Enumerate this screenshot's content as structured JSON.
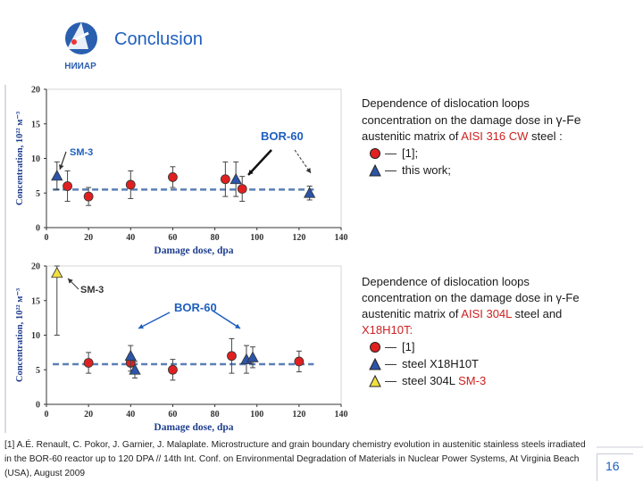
{
  "header": {
    "title": "Conclusion",
    "logo_text": "НИИАР"
  },
  "charts": {
    "chart_data": [
      {
        "type": "scatter",
        "xlabel": "Damage dose, dpa",
        "ylabel": "Concentration, 10²² м⁻³",
        "xlim": [
          0,
          140
        ],
        "ylim": [
          0,
          20
        ],
        "xticks": [
          "0",
          "20",
          "40",
          "60",
          "80",
          "100",
          "120",
          "140"
        ],
        "yticks": [
          "0",
          "5",
          "10",
          "15",
          "20"
        ],
        "annotations": [
          "SM-3",
          "BOR-60"
        ],
        "mean_line": 5.5,
        "series": [
          {
            "name": "[1]",
            "marker": "circle",
            "x": [
              10,
              20,
              40,
              60,
              85,
              93
            ],
            "y": [
              6.0,
              4.5,
              6.2,
              7.3,
              7.0,
              5.6
            ],
            "err": [
              2.2,
              1.3,
              2.0,
              1.5,
              2.5,
              1.8
            ]
          },
          {
            "name": "this work",
            "marker": "triangle",
            "x": [
              5,
              90,
              125
            ],
            "y": [
              7.5,
              7.0,
              5.0
            ],
            "err": [
              2.0,
              2.5,
              1.0
            ]
          }
        ]
      },
      {
        "type": "scatter",
        "xlabel": "Damage dose, dpa",
        "ylabel": "Concentration, 10²² м⁻³",
        "xlim": [
          0,
          140
        ],
        "ylim": [
          0,
          20
        ],
        "xticks": [
          "0",
          "20",
          "40",
          "60",
          "80",
          "100",
          "120",
          "140"
        ],
        "yticks": [
          "0",
          "5",
          "10",
          "15",
          "20"
        ],
        "annotations": [
          "SM-3",
          "BOR-60"
        ],
        "mean_line": 5.8,
        "series": [
          {
            "name": "[1]",
            "marker": "circle",
            "x": [
              20,
              40,
              60,
              88,
              120
            ],
            "y": [
              6.0,
              6.0,
              5.0,
              7.0,
              6.2
            ],
            "err": [
              1.5,
              1.2,
              1.5,
              2.5,
              1.5
            ]
          },
          {
            "name": "steel X18H10T",
            "marker": "triangle",
            "x": [
              40,
              42,
              95,
              98
            ],
            "y": [
              7.0,
              5.0,
              6.5,
              6.8
            ],
            "err": [
              1.5,
              1.2,
              2.0,
              1.5
            ]
          },
          {
            "name": "steel 304L SM-3",
            "marker": "triangle-yellow",
            "x": [
              5
            ],
            "y": [
              19.0
            ],
            "err": [
              9.0
            ]
          }
        ]
      }
    ]
  },
  "desc1": {
    "l1": "Dependence of  dislocation loops",
    "l2a": "concentration on the damage dose in ",
    "gamma": "γ-Fe",
    "l3a": "austenitic matrix of ",
    "l3r": "AISI 316 CW",
    "l3b": " steel :",
    "legend": [
      "[1];",
      "this work;"
    ]
  },
  "desc2": {
    "l1": "Dependence of  dislocation loops",
    "l2a": "concentration on the damage dose in ",
    "gamma": "γ-Fe",
    "l3a": "austenitic matrix of ",
    "l3r": "AISI 304L",
    "l3b": " steel and",
    "l4": "X18H10T:",
    "legend": [
      "[1]",
      "steel X18H10T",
      "steel 304L "
    ],
    "legend_red": "SM-3"
  },
  "footnote": "[1] A.É. Renault, C. Pokor, J. Garnier, J. Malaplate. Microstructure and grain boundary chemistry evolution in austenitic stainless steels irradiated in the BOR-60 reactor up to 120 DPA // 14th Int. Conf. on Environmental Degradation of Materials in Nuclear Power Systems, At Virginia Beach (USA), August 2009",
  "page_number": "16",
  "colors": {
    "title": "#1f5fbf",
    "circle": "#e02020",
    "triangle": "#2c54a8",
    "triangle_yellow": "#f0e040",
    "mean": "#5b7fb5",
    "annotation": "#1f5fbf"
  }
}
